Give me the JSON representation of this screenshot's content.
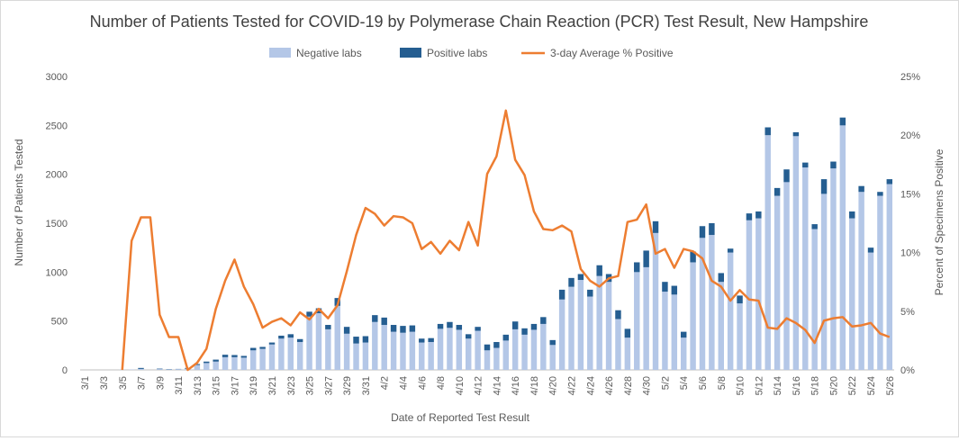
{
  "chart_data": {
    "type": "bar",
    "title": "Number of Patients Tested for COVID-19 by Polymerase Chain Reaction (PCR) Test Result, New Hampshire",
    "xlabel": "Date of Reported Test Result",
    "ylabel": "Number of Patients Tested",
    "y2label": "Percent of Specimens Positive",
    "ylim": [
      0,
      3000
    ],
    "y2lim": [
      0,
      25
    ],
    "yticks": [
      "0",
      "500",
      "1000",
      "1500",
      "2000",
      "2500",
      "3000"
    ],
    "y2ticks": [
      "0%",
      "5%",
      "10%",
      "15%",
      "20%",
      "25%"
    ],
    "x": [
      "3/1",
      "3/2",
      "3/3",
      "3/4",
      "3/5",
      "3/6",
      "3/7",
      "3/8",
      "3/9",
      "3/10",
      "3/11",
      "3/12",
      "3/13",
      "3/14",
      "3/15",
      "3/16",
      "3/17",
      "3/18",
      "3/19",
      "3/20",
      "3/21",
      "3/22",
      "3/23",
      "3/24",
      "3/25",
      "3/26",
      "3/27",
      "3/28",
      "3/29",
      "3/30",
      "3/31",
      "4/1",
      "4/2",
      "4/3",
      "4/4",
      "4/5",
      "4/6",
      "4/7",
      "4/8",
      "4/9",
      "4/10",
      "4/11",
      "4/12",
      "4/13",
      "4/14",
      "4/15",
      "4/16",
      "4/17",
      "4/18",
      "4/19",
      "4/20",
      "4/21",
      "4/22",
      "4/23",
      "4/24",
      "4/25",
      "4/26",
      "4/27",
      "4/28",
      "4/29",
      "4/30",
      "5/1",
      "5/2",
      "5/3",
      "5/4",
      "5/5",
      "5/6",
      "5/7",
      "5/8",
      "5/9",
      "5/10",
      "5/11",
      "5/12",
      "5/13",
      "5/14",
      "5/15",
      "5/16",
      "5/17",
      "5/18",
      "5/19",
      "5/20",
      "5/21",
      "5/22",
      "5/23",
      "5/24",
      "5/25",
      "5/26"
    ],
    "xtick_labels": [
      "3/1",
      "3/3",
      "3/5",
      "3/7",
      "3/9",
      "3/11",
      "3/13",
      "3/15",
      "3/17",
      "3/19",
      "3/21",
      "3/23",
      "3/25",
      "3/27",
      "3/29",
      "3/31",
      "4/2",
      "4/4",
      "4/6",
      "4/8",
      "4/10",
      "4/12",
      "4/14",
      "4/16",
      "4/18",
      "4/20",
      "4/22",
      "4/24",
      "4/26",
      "4/28",
      "4/30",
      "5/2",
      "5/4",
      "5/6",
      "5/8",
      "5/10",
      "5/12",
      "5/14",
      "5/16",
      "5/18",
      "5/20",
      "5/22",
      "5/24",
      "5/26"
    ],
    "series": [
      {
        "name": "Negative labs",
        "type": "bar",
        "color": "#b4c7e7",
        "values": [
          0,
          0,
          0,
          0,
          2,
          4,
          10,
          0,
          8,
          5,
          8,
          12,
          50,
          70,
          85,
          130,
          130,
          125,
          200,
          215,
          260,
          320,
          330,
          285,
          545,
          580,
          415,
          655,
          370,
          270,
          280,
          490,
          460,
          390,
          380,
          390,
          280,
          285,
          420,
          430,
          410,
          320,
          400,
          200,
          225,
          300,
          415,
          360,
          410,
          470,
          255,
          720,
          850,
          920,
          750,
          960,
          900,
          520,
          330,
          1000,
          1050,
          1400,
          800,
          770,
          330,
          1100,
          1350,
          1380,
          900,
          1200,
          680,
          1530,
          1550,
          2400,
          1780,
          1920,
          2390,
          2070,
          1440,
          1800,
          2060,
          2500,
          1550,
          1820,
          1200,
          1780,
          1900
        ]
      },
      {
        "name": "Positive labs",
        "type": "bar",
        "color": "#255e91",
        "values": [
          0,
          0,
          0,
          0,
          0,
          0,
          10,
          0,
          5,
          3,
          2,
          8,
          10,
          15,
          20,
          25,
          22,
          18,
          25,
          20,
          20,
          30,
          35,
          30,
          50,
          50,
          45,
          80,
          70,
          70,
          65,
          70,
          75,
          70,
          70,
          65,
          40,
          40,
          50,
          60,
          50,
          45,
          40,
          60,
          60,
          60,
          80,
          65,
          60,
          70,
          50,
          100,
          90,
          60,
          70,
          110,
          80,
          90,
          90,
          100,
          170,
          120,
          100,
          90,
          60,
          110,
          120,
          120,
          90,
          40,
          80,
          70,
          70,
          80,
          80,
          130,
          40,
          50,
          50,
          150,
          70,
          80,
          70,
          60,
          50,
          40,
          50
        ]
      },
      {
        "name": "3-day Average % Positive",
        "type": "line",
        "axis": "y2",
        "color": "#ed7d31",
        "values": [
          null,
          null,
          null,
          null,
          0,
          11,
          13,
          13,
          4.7,
          2.8,
          2.8,
          0,
          0.6,
          1.8,
          5.2,
          7.6,
          9.4,
          7.1,
          5.6,
          3.6,
          4.1,
          4.4,
          3.8,
          4.9,
          4.3,
          5.2,
          4.4,
          5.5,
          8.4,
          11.5,
          13.8,
          13.3,
          12.3,
          13.1,
          13,
          12.5,
          10.3,
          10.9,
          9.9,
          11,
          10.2,
          12.6,
          10.6,
          16.7,
          18.2,
          22.1,
          17.9,
          16.6,
          13.5,
          12,
          11.9,
          12.3,
          11.8,
          8.6,
          7.6,
          7.1,
          7.8,
          8,
          12.6,
          12.8,
          14.1,
          9.9,
          10.3,
          8.7,
          10.3,
          10.1,
          9.5,
          7.6,
          7.1,
          5.9,
          6.8,
          6,
          5.9,
          3.6,
          3.5,
          4.4,
          4,
          3.4,
          2.3,
          4.2,
          4.4,
          4.5,
          3.7,
          3.8,
          4,
          3.1,
          2.8
        ]
      }
    ],
    "legend": {
      "position": "top"
    },
    "grid": false
  }
}
